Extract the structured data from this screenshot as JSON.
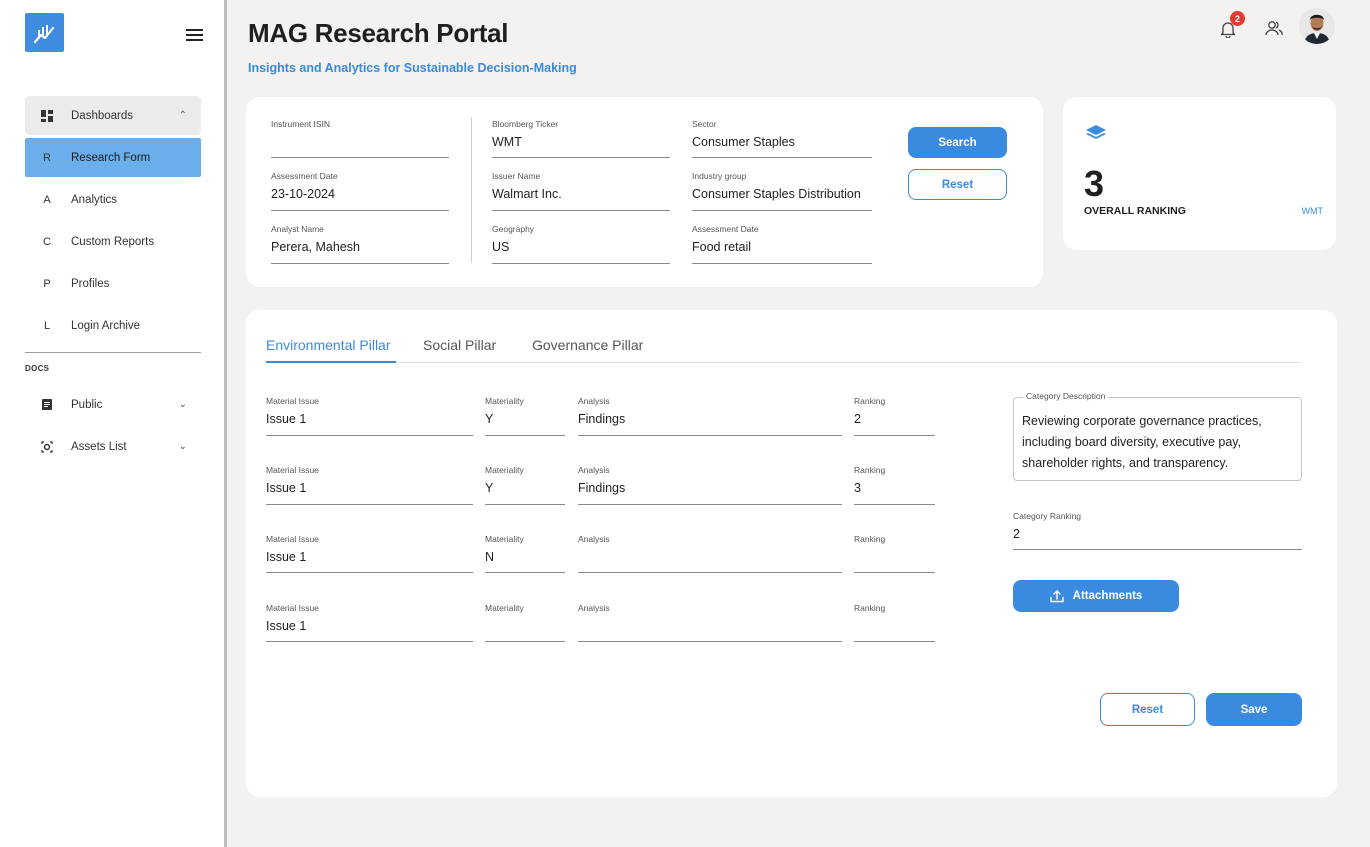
{
  "sidebar": {
    "items": [
      {
        "icon": "dashboard-icon",
        "label": "Dashboards"
      },
      {
        "icon": "R",
        "label": "Research Form"
      },
      {
        "icon": "A",
        "label": "Analytics"
      },
      {
        "icon": "C",
        "label": "Custom Reports"
      },
      {
        "icon": "P",
        "label": "Profiles"
      },
      {
        "icon": "L",
        "label": "Login Archive"
      }
    ],
    "docs_label": "DOCS",
    "docs_items": [
      {
        "icon": "document-icon",
        "label": "Public"
      },
      {
        "icon": "assets-icon",
        "label": "Assets List"
      }
    ]
  },
  "header": {
    "title": "MAG Research Portal",
    "subtitle": "Insights and Analytics for Sustainable Decision-Making",
    "notification_count": "2"
  },
  "search": {
    "fields": {
      "isin": {
        "label": "Instrument ISIN",
        "value": ""
      },
      "assessment_date": {
        "label": "Assessment Date",
        "value": "23-10-2024"
      },
      "analyst": {
        "label": "Analyst Name",
        "value": "Perera, Mahesh"
      },
      "ticker": {
        "label": "Bloomberg Ticker",
        "value": "WMT"
      },
      "issuer": {
        "label": "Issuer Name",
        "value": "Walmart Inc."
      },
      "geography": {
        "label": "Geography",
        "value": "US"
      },
      "sector": {
        "label": "Sector",
        "value": "Consumer Staples"
      },
      "industry": {
        "label": "Industry group",
        "value": "Consumer Staples Distribution"
      },
      "assessment_date2": {
        "label": "Assessment Date",
        "value": "Food retail"
      }
    },
    "search_label": "Search",
    "reset_label": "Reset"
  },
  "ranking": {
    "value": "3",
    "label": "OVERALL RANKING",
    "ticker": "WMT"
  },
  "pillars": {
    "tabs": [
      "Environmental Pillar",
      "Social Pillar",
      "Governance Pillar"
    ],
    "active_tab": "Environmental Pillar",
    "column_labels": {
      "issue": "Material Issue",
      "materiality": "Materiality",
      "analysis": "Analysis",
      "ranking": "Ranking"
    },
    "rows": [
      {
        "issue": "Issue 1",
        "materiality": "Y",
        "analysis": "Findings",
        "ranking": "2"
      },
      {
        "issue": "Issue 1",
        "materiality": "Y",
        "analysis": "Findings",
        "ranking": "3"
      },
      {
        "issue": "Issue 1",
        "materiality": "N",
        "analysis": "",
        "ranking": ""
      },
      {
        "issue": "Issue 1",
        "materiality": "",
        "analysis": "",
        "ranking": ""
      }
    ],
    "category_description_label": "Category Description",
    "category_description": "Reviewing corporate governance practices, including board diversity, executive pay, shareholder rights, and transparency.",
    "category_ranking_label": "Category Ranking",
    "category_ranking": "2",
    "attachments_label": "Attachments",
    "reset_label": "Reset",
    "save_label": "Save"
  },
  "colors": {
    "accent": "#3a8be0",
    "sidebar_active": "#6aaeec",
    "badge": "#e53935",
    "background": "#f4f2f1"
  }
}
